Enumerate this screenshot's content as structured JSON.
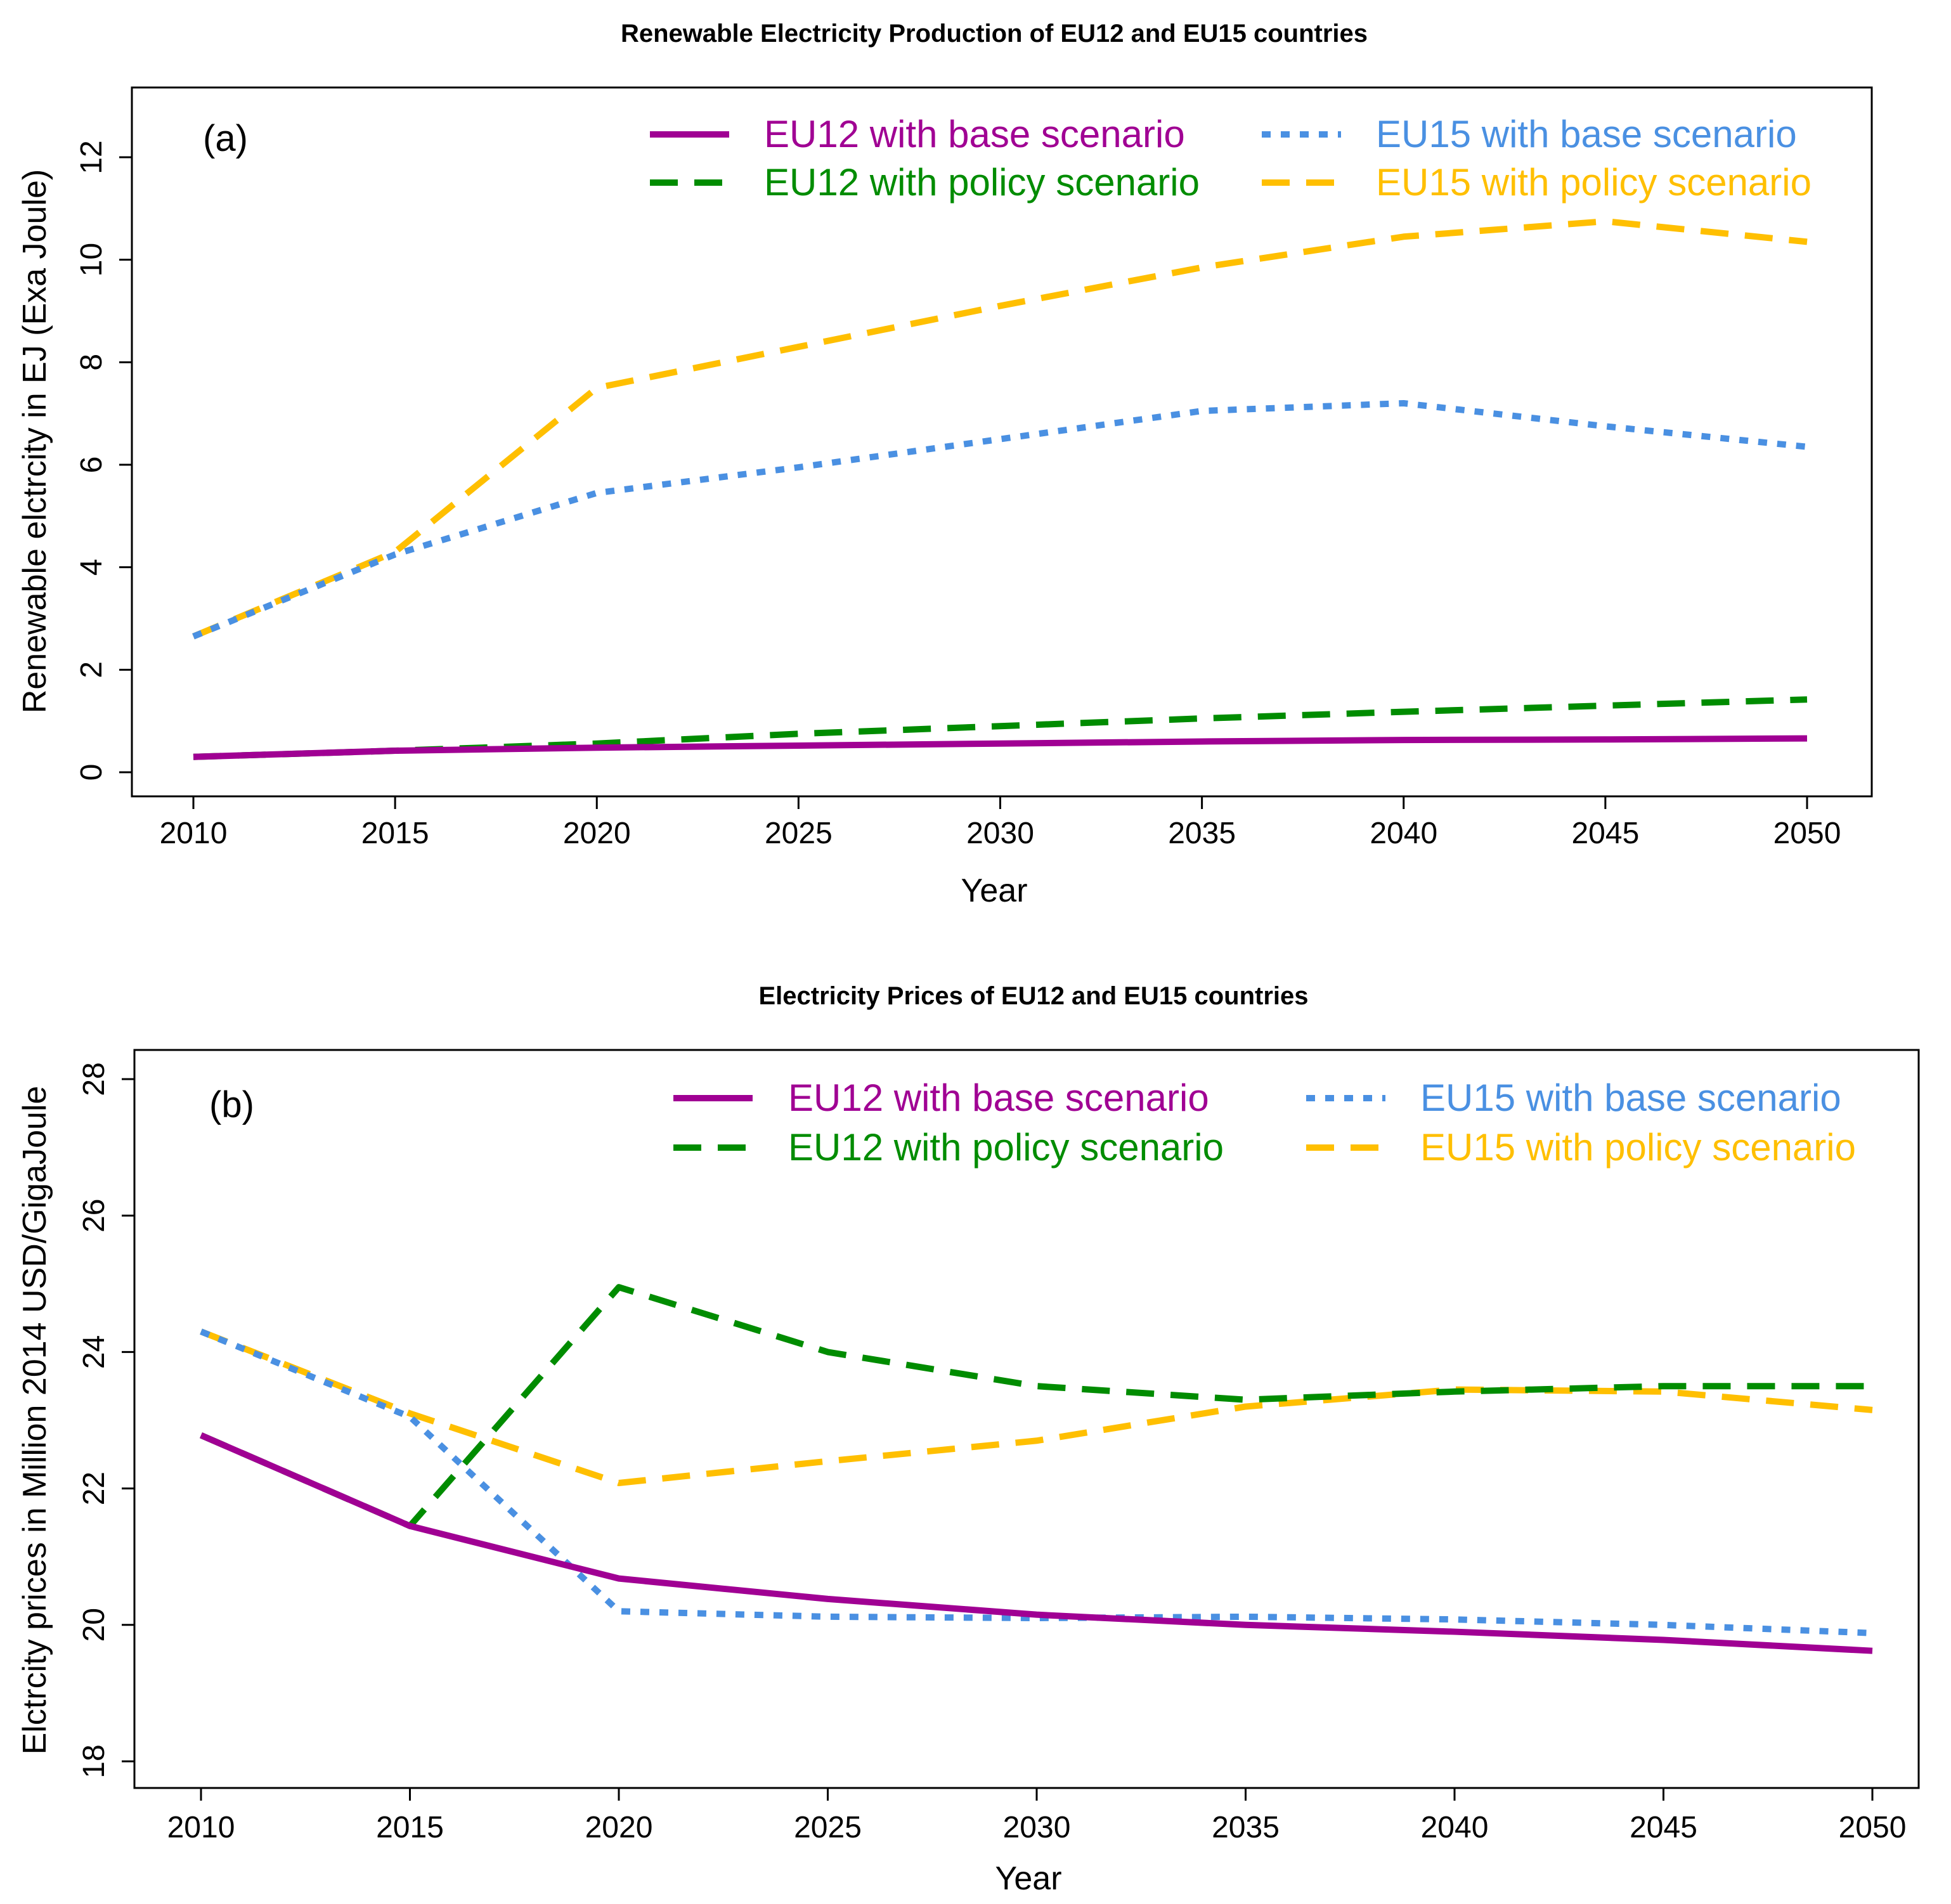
{
  "chart_data": [
    {
      "id": "a",
      "type": "line",
      "title": "Renewable Electricity Production of EU12 and EU15 countries",
      "panel_label": "(a)",
      "xlabel": "Year",
      "ylabel": "Renewable elctrcity in EJ (Exa Joule)",
      "xlim": [
        2010,
        2050
      ],
      "ylim": [
        0,
        13
      ],
      "x_ticks": [
        2010,
        2015,
        2020,
        2025,
        2030,
        2035,
        2040,
        2045,
        2050
      ],
      "y_ticks": [
        0,
        2,
        4,
        6,
        8,
        10,
        12
      ],
      "x": [
        2010,
        2015,
        2020,
        2025,
        2030,
        2035,
        2040,
        2045,
        2050
      ],
      "legend_position": "top-right",
      "series": [
        {
          "name": "EU12 with base scenario",
          "color": "#a00093",
          "style": "solid",
          "values": [
            0.3,
            0.42,
            0.48,
            0.52,
            0.56,
            0.6,
            0.63,
            0.64,
            0.66
          ]
        },
        {
          "name": "EU12 with policy scenario",
          "color": "#008c00",
          "style": "dashed",
          "values": [
            0.3,
            0.42,
            0.56,
            0.75,
            0.9,
            1.05,
            1.18,
            1.3,
            1.42
          ]
        },
        {
          "name": "EU15 with base scenario",
          "color": "#4a90e2",
          "style": "dotted",
          "values": [
            2.65,
            4.25,
            5.45,
            5.95,
            6.5,
            7.05,
            7.2,
            6.75,
            6.35
          ]
        },
        {
          "name": "EU15 with policy scenario",
          "color": "#ffbf00",
          "style": "dashed",
          "values": [
            2.65,
            4.3,
            7.5,
            8.3,
            9.1,
            9.85,
            10.45,
            10.75,
            10.35
          ]
        }
      ]
    },
    {
      "id": "b",
      "type": "line",
      "title": "Electricity Prices of EU12 and EU15 countries",
      "panel_label": "(b)",
      "xlabel": "Year",
      "ylabel": "Elctrcity prices in Million 2014 USD/GigaJoule",
      "xlim": [
        2010,
        2050
      ],
      "ylim": [
        18,
        28
      ],
      "x_ticks": [
        2010,
        2015,
        2020,
        2025,
        2030,
        2035,
        2040,
        2045,
        2050
      ],
      "y_ticks": [
        18,
        20,
        22,
        24,
        26,
        28
      ],
      "x": [
        2010,
        2015,
        2020,
        2025,
        2030,
        2035,
        2040,
        2045,
        2050
      ],
      "legend_position": "top-right",
      "series": [
        {
          "name": "EU12 with base scenario",
          "color": "#a00093",
          "style": "solid",
          "values": [
            22.78,
            21.45,
            20.68,
            20.38,
            20.15,
            20.0,
            19.9,
            19.78,
            19.62
          ]
        },
        {
          "name": "EU12 with policy scenario",
          "color": "#008c00",
          "style": "dashed",
          "values": [
            22.78,
            21.45,
            24.95,
            24.0,
            23.5,
            23.3,
            23.42,
            23.5,
            23.5
          ]
        },
        {
          "name": "EU15 with base scenario",
          "color": "#4a90e2",
          "style": "dotted",
          "values": [
            24.3,
            23.05,
            20.2,
            20.12,
            20.1,
            20.12,
            20.08,
            20.0,
            19.88
          ]
        },
        {
          "name": "EU15 with policy scenario",
          "color": "#ffbf00",
          "style": "dashed",
          "values": [
            24.3,
            23.1,
            22.08,
            22.4,
            22.7,
            23.2,
            23.45,
            23.42,
            23.15
          ]
        }
      ]
    }
  ]
}
